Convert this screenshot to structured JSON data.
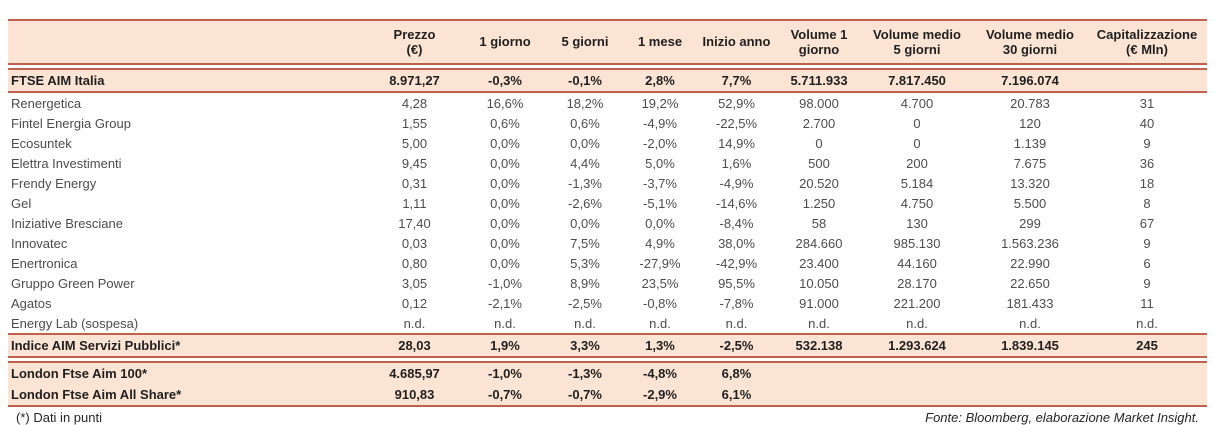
{
  "colors": {
    "accent_border": "#c0604f",
    "highlight_bg": "#fce4d4"
  },
  "table": {
    "columns": [
      {
        "label": ""
      },
      {
        "label": "Prezzo\n(€)"
      },
      {
        "label": "1 giorno"
      },
      {
        "label": "5 giorni"
      },
      {
        "label": "1 mese"
      },
      {
        "label": "Inizio anno"
      },
      {
        "label": "Volume 1\ngiorno"
      },
      {
        "label": "Volume medio\n5 giorni"
      },
      {
        "label": "Volume medio\n30 giorni"
      },
      {
        "label": "Capitalizzazione\n(€ Mln)"
      }
    ],
    "index_row": [
      "FTSE AIM Italia",
      "8.971,27",
      "-0,3%",
      "-0,1%",
      "2,8%",
      "7,7%",
      "5.711.933",
      "7.817.450",
      "7.196.074",
      ""
    ],
    "stock_rows": [
      [
        "Renergetica",
        "4,28",
        "16,6%",
        "18,2%",
        "19,2%",
        "52,9%",
        "98.000",
        "4.700",
        "20.783",
        "31"
      ],
      [
        "Fintel Energia Group",
        "1,55",
        "0,6%",
        "0,6%",
        "-4,9%",
        "-22,5%",
        "2.700",
        "0",
        "120",
        "40"
      ],
      [
        "Ecosuntek",
        "5,00",
        "0,0%",
        "0,0%",
        "-2,0%",
        "14,9%",
        "0",
        "0",
        "1.139",
        "9"
      ],
      [
        "Elettra Investimenti",
        "9,45",
        "0,0%",
        "4,4%",
        "5,0%",
        "1,6%",
        "500",
        "200",
        "7.675",
        "36"
      ],
      [
        "Frendy Energy",
        "0,31",
        "0,0%",
        "-1,3%",
        "-3,7%",
        "-4,9%",
        "20.520",
        "5.184",
        "13.320",
        "18"
      ],
      [
        "Gel",
        "1,11",
        "0,0%",
        "-2,6%",
        "-5,1%",
        "-14,6%",
        "1.250",
        "4.750",
        "5.500",
        "8"
      ],
      [
        "Iniziative Bresciane",
        "17,40",
        "0,0%",
        "0,0%",
        "0,0%",
        "-8,4%",
        "58",
        "130",
        "299",
        "67"
      ],
      [
        "Innovatec",
        "0,03",
        "0,0%",
        "7,5%",
        "4,9%",
        "38,0%",
        "284.660",
        "985.130",
        "1.563.236",
        "9"
      ],
      [
        "Enertronica",
        "0,80",
        "0,0%",
        "5,3%",
        "-27,9%",
        "-42,9%",
        "23.400",
        "44.160",
        "22.990",
        "6"
      ],
      [
        "Gruppo Green Power",
        "3,05",
        "-1,0%",
        "8,9%",
        "23,5%",
        "95,5%",
        "10.050",
        "28.170",
        "22.650",
        "9"
      ],
      [
        "Agatos",
        "0,12",
        "-2,1%",
        "-2,5%",
        "-0,8%",
        "-7,8%",
        "91.000",
        "221.200",
        "181.433",
        "11"
      ],
      [
        "Energy Lab (sospesa)",
        "n.d.",
        "n.d.",
        "n.d.",
        "n.d.",
        "n.d.",
        "n.d.",
        "n.d.",
        "n.d.",
        "n.d."
      ]
    ],
    "services_index_row": [
      "Indice AIM Servizi Pubblici*",
      "28,03",
      "1,9%",
      "3,3%",
      "1,3%",
      "-2,5%",
      "532.138",
      "1.293.624",
      "1.839.145",
      "245"
    ],
    "london_rows": [
      [
        "London Ftse Aim 100*",
        "4.685,97",
        "-1,0%",
        "-1,3%",
        "-4,8%",
        "6,8%",
        "",
        "",
        "",
        ""
      ],
      [
        "London Ftse Aim All Share*",
        "910,83",
        "-0,7%",
        "-0,7%",
        "-2,9%",
        "6,1%",
        "",
        "",
        "",
        ""
      ]
    ]
  },
  "footer": {
    "note": "(*) Dati in punti",
    "source": "Fonte: Bloomberg, elaborazione Market Insight."
  }
}
